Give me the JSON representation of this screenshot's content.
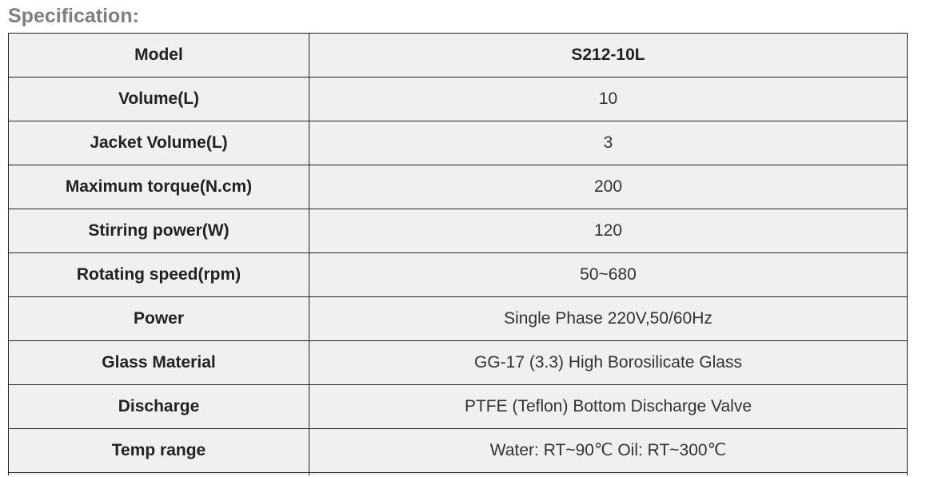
{
  "title": "Specification:",
  "rows": [
    {
      "label": "Model",
      "value": "S212-10L"
    },
    {
      "label": "Volume(L)",
      "value": "10"
    },
    {
      "label": "Jacket Volume(L)",
      "value": "3"
    },
    {
      "label": "Maximum torque(N.cm)",
      "value": "200"
    },
    {
      "label": "Stirring power(W)",
      "value": "120"
    },
    {
      "label": "Rotating speed(rpm)",
      "value": "50~680"
    },
    {
      "label": "Power",
      "value": "Single Phase 220V,50/60Hz"
    },
    {
      "label": "Glass Material",
      "value": "GG-17 (3.3) High Borosilicate Glass"
    },
    {
      "label": "Discharge",
      "value": "PTFE (Teflon) Bottom Discharge Valve"
    },
    {
      "label": "Temp range",
      "value": "Water: RT~90℃ Oil: RT~300℃"
    }
  ]
}
